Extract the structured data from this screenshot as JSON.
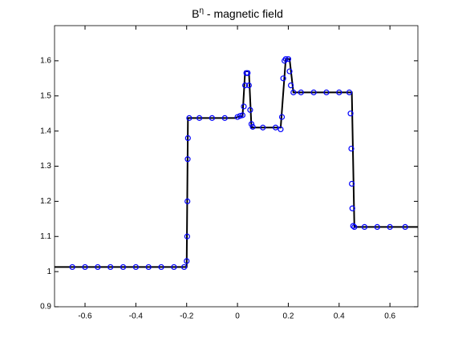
{
  "chart_data": {
    "type": "line",
    "title": {
      "base": "B",
      "sup": "η",
      "rest": " - magnetic field"
    },
    "xlim": [
      -0.72,
      0.71
    ],
    "ylim": [
      0.9,
      1.7
    ],
    "xticks": [
      -0.6,
      -0.4,
      -0.2,
      0,
      0.2,
      0.4,
      0.6
    ],
    "yticks": [
      0.9,
      1,
      1.1,
      1.2,
      1.3,
      1.4,
      1.5,
      1.6
    ],
    "series": [
      {
        "color": "#000000",
        "marker": "none",
        "linewidth": 2,
        "x": [
          -0.72,
          -0.2,
          -0.195,
          -0.01,
          0.0,
          0.02,
          0.03,
          0.045,
          0.055,
          0.17,
          0.19,
          0.205,
          0.22,
          0.45,
          0.46,
          0.71
        ],
        "values": [
          1.013,
          1.013,
          1.437,
          1.437,
          1.44,
          1.443,
          1.57,
          1.57,
          1.41,
          1.41,
          1.605,
          1.605,
          1.51,
          1.51,
          1.127,
          1.127
        ]
      },
      {
        "color": "#0000ff",
        "marker": "o",
        "linewidth": 0,
        "x": [
          -0.65,
          -0.6,
          -0.55,
          -0.5,
          -0.45,
          -0.4,
          -0.35,
          -0.3,
          -0.25,
          -0.21,
          -0.2,
          -0.198,
          -0.197,
          -0.196,
          -0.195,
          -0.19,
          -0.15,
          -0.1,
          -0.05,
          0,
          0.01,
          0.02,
          0.025,
          0.03,
          0.035,
          0.04,
          0.045,
          0.05,
          0.055,
          0.06,
          0.1,
          0.15,
          0.17,
          0.175,
          0.18,
          0.185,
          0.19,
          0.2,
          0.205,
          0.21,
          0.22,
          0.25,
          0.3,
          0.35,
          0.4,
          0.44,
          0.445,
          0.448,
          0.45,
          0.452,
          0.455,
          0.46,
          0.5,
          0.55,
          0.6,
          0.66
        ],
        "values": [
          1.013,
          1.013,
          1.013,
          1.013,
          1.013,
          1.013,
          1.013,
          1.013,
          1.013,
          1.013,
          1.03,
          1.1,
          1.2,
          1.32,
          1.38,
          1.437,
          1.437,
          1.437,
          1.437,
          1.44,
          1.443,
          1.445,
          1.47,
          1.53,
          1.565,
          1.565,
          1.53,
          1.46,
          1.42,
          1.412,
          1.41,
          1.41,
          1.405,
          1.44,
          1.55,
          1.6,
          1.605,
          1.605,
          1.57,
          1.53,
          1.51,
          1.51,
          1.51,
          1.51,
          1.51,
          1.51,
          1.45,
          1.35,
          1.25,
          1.18,
          1.13,
          1.127,
          1.127,
          1.127,
          1.127,
          1.127
        ]
      }
    ]
  }
}
